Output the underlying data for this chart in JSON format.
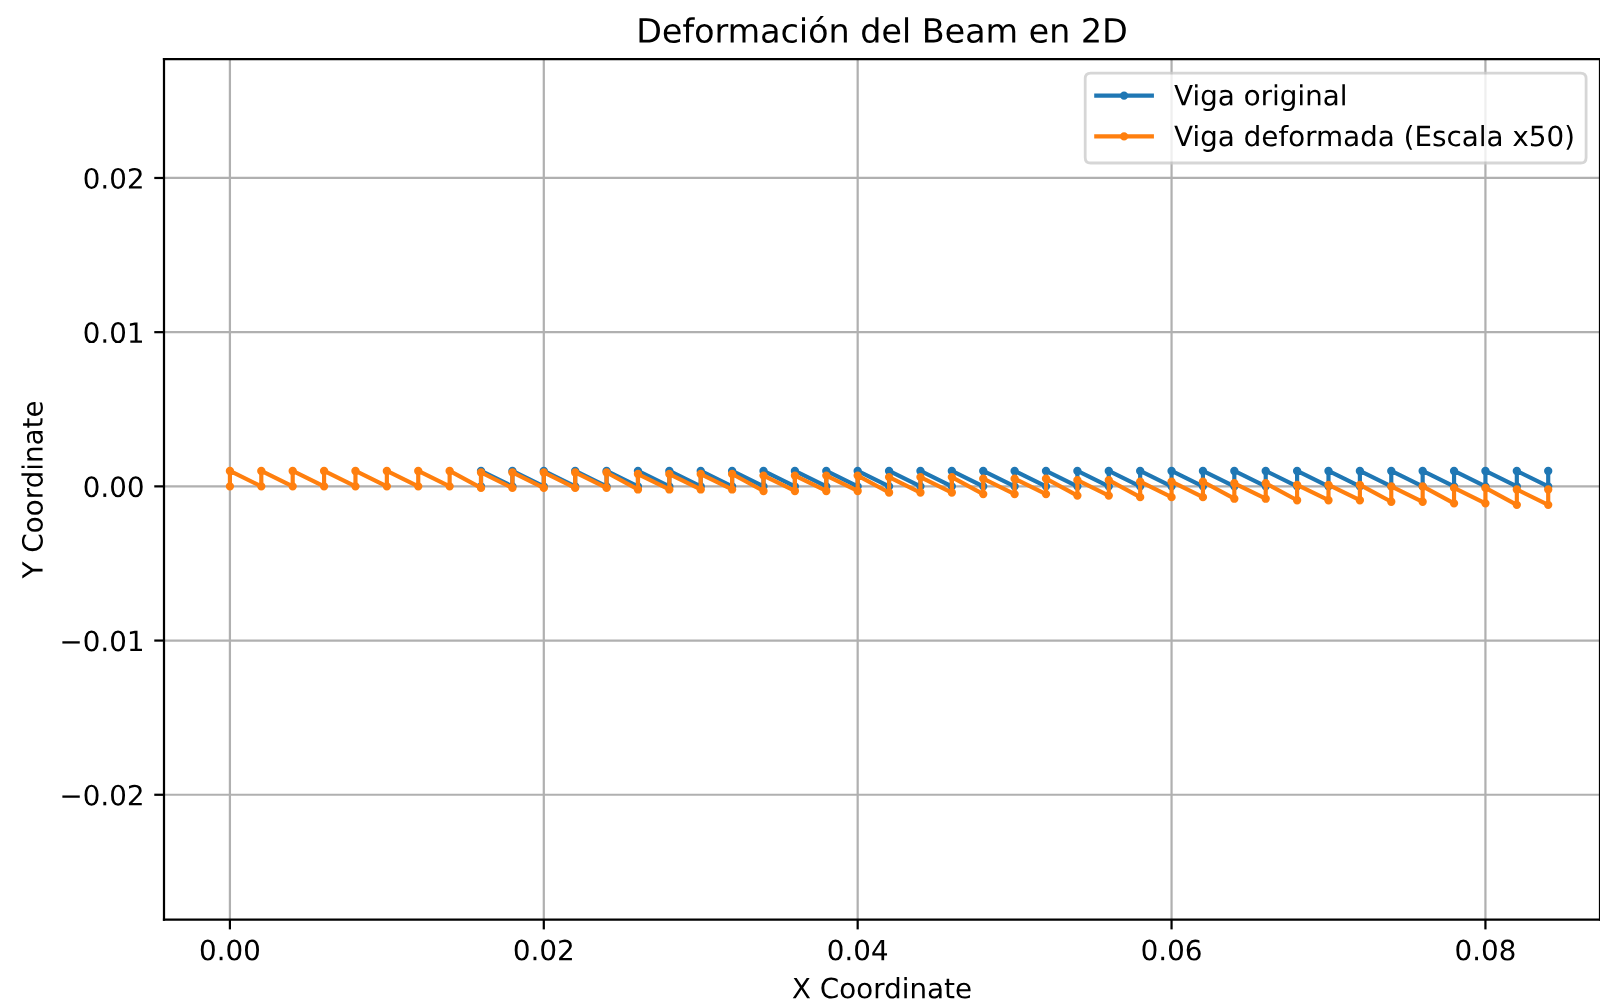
{
  "chart_data": {
    "type": "line",
    "title": "Deformación del Beam en 2D",
    "xlabel": "X Coordinate",
    "ylabel": "Y Coordinate",
    "xlim": [
      -0.0042,
      0.0873
    ],
    "ylim": [
      -0.0281,
      0.0277
    ],
    "xticks": [
      {
        "value": 0,
        "label": "0.00"
      },
      {
        "value": 0.02,
        "label": "0.02"
      },
      {
        "value": 0.04,
        "label": "0.04"
      },
      {
        "value": 0.06,
        "label": "0.06"
      },
      {
        "value": 0.08,
        "label": "0.08"
      }
    ],
    "yticks": [
      {
        "value": -0.02,
        "label": "−0.02"
      },
      {
        "value": -0.01,
        "label": "−0.01"
      },
      {
        "value": 0,
        "label": "0.00"
      },
      {
        "value": 0.01,
        "label": "0.01"
      },
      {
        "value": 0.02,
        "label": "0.02"
      }
    ],
    "grid": true,
    "legend": "top right",
    "marker": "circle",
    "line_style": "solid",
    "series": [
      {
        "name": "Viga original",
        "color": "#1f77b4",
        "x": [
          0.016,
          0.016,
          0.018,
          0.018,
          0.02,
          0.02,
          0.022,
          0.022,
          0.024,
          0.024,
          0.026,
          0.026,
          0.028,
          0.028,
          0.03,
          0.03,
          0.032,
          0.032,
          0.034,
          0.034,
          0.036,
          0.036,
          0.038,
          0.038,
          0.04,
          0.04,
          0.042,
          0.042,
          0.044,
          0.044,
          0.046,
          0.046,
          0.048,
          0.048,
          0.05,
          0.05,
          0.052,
          0.052,
          0.054,
          0.054,
          0.056,
          0.056,
          0.058,
          0.058,
          0.06,
          0.06,
          0.062,
          0.062,
          0.064,
          0.064,
          0.066,
          0.066,
          0.068,
          0.068,
          0.07,
          0.07,
          0.072,
          0.072,
          0.074,
          0.074,
          0.076,
          0.076,
          0.078,
          0.078,
          0.08,
          0.08,
          0.082,
          0.082,
          0.084,
          0.084
        ],
        "values": [
          0,
          0.001,
          0,
          0.001,
          0,
          0.001,
          0,
          0.001,
          0,
          0.001,
          0,
          0.001,
          0,
          0.001,
          0,
          0.001,
          0,
          0.001,
          0,
          0.001,
          0,
          0.001,
          0,
          0.001,
          0,
          0.001,
          0,
          0.001,
          0,
          0.001,
          0,
          0.001,
          0,
          0.001,
          0,
          0.001,
          0,
          0.001,
          0,
          0.001,
          0,
          0.001,
          0,
          0.001,
          0,
          0.001,
          0,
          0.001,
          0,
          0.001,
          0,
          0.001,
          0,
          0.001,
          0,
          0.001,
          0,
          0.001,
          0,
          0.001,
          0,
          0.001,
          0,
          0.001,
          0,
          0.001,
          0,
          0.001,
          0,
          0.001
        ]
      },
      {
        "name": "Viga deformada (Escala x50)",
        "color": "#ff7f0e",
        "x": [
          0,
          0,
          0.002,
          0.002,
          0.004,
          0.004,
          0.006,
          0.006,
          0.008,
          0.008,
          0.01,
          0.01,
          0.012,
          0.012,
          0.014,
          0.014,
          0.016,
          0.016,
          0.018,
          0.018,
          0.02,
          0.02,
          0.022,
          0.022,
          0.024,
          0.024,
          0.026,
          0.026,
          0.028,
          0.028,
          0.03,
          0.03,
          0.032,
          0.032,
          0.034,
          0.034,
          0.036,
          0.036,
          0.038,
          0.038,
          0.04,
          0.04,
          0.042,
          0.042,
          0.044,
          0.044,
          0.046,
          0.046,
          0.048,
          0.048,
          0.05,
          0.05,
          0.052,
          0.052,
          0.054,
          0.054,
          0.056,
          0.056,
          0.058,
          0.058,
          0.06,
          0.06,
          0.062,
          0.062,
          0.064,
          0.064,
          0.066,
          0.066,
          0.068,
          0.068,
          0.07,
          0.07,
          0.072,
          0.072,
          0.074,
          0.074,
          0.076,
          0.076,
          0.078,
          0.078,
          0.08,
          0.08,
          0.082,
          0.082,
          0.084,
          0.084
        ],
        "values": [
          0,
          0.001,
          0,
          0.001,
          0,
          0.001,
          0,
          0.001,
          0,
          0.001,
          0,
          0.001,
          0,
          0.001,
          0,
          0.001,
          -0.0001,
          0.0009,
          -0.0001,
          0.0009,
          -0.0001,
          0.0009,
          -0.0001,
          0.0009,
          -0.0001,
          0.0009,
          -0.0002,
          0.0008,
          -0.0002,
          0.0008,
          -0.0002,
          0.0008,
          -0.0002,
          0.0008,
          -0.0003,
          0.0007,
          -0.0003,
          0.0007,
          -0.0003,
          0.0007,
          -0.0003,
          0.0007,
          -0.0004,
          0.0006,
          -0.0004,
          0.0006,
          -0.0004,
          0.0006,
          -0.0005,
          0.0005,
          -0.0005,
          0.0005,
          -0.0005,
          0.0005,
          -0.0006,
          0.0004,
          -0.0006,
          0.0004,
          -0.0007,
          0.0003,
          -0.0007,
          0.0003,
          -0.0007,
          0.0003,
          -0.0008,
          0.0002,
          -0.0008,
          0.0002,
          -0.0009,
          0.0001,
          -0.0009,
          0.0001,
          -0.0009,
          0.0001,
          -0.001,
          0,
          -0.001,
          0,
          -0.0011,
          -0.0001,
          -0.0011,
          -0.0001,
          -0.0012,
          -0.0002,
          -0.0012,
          -0.0002
        ]
      }
    ]
  }
}
